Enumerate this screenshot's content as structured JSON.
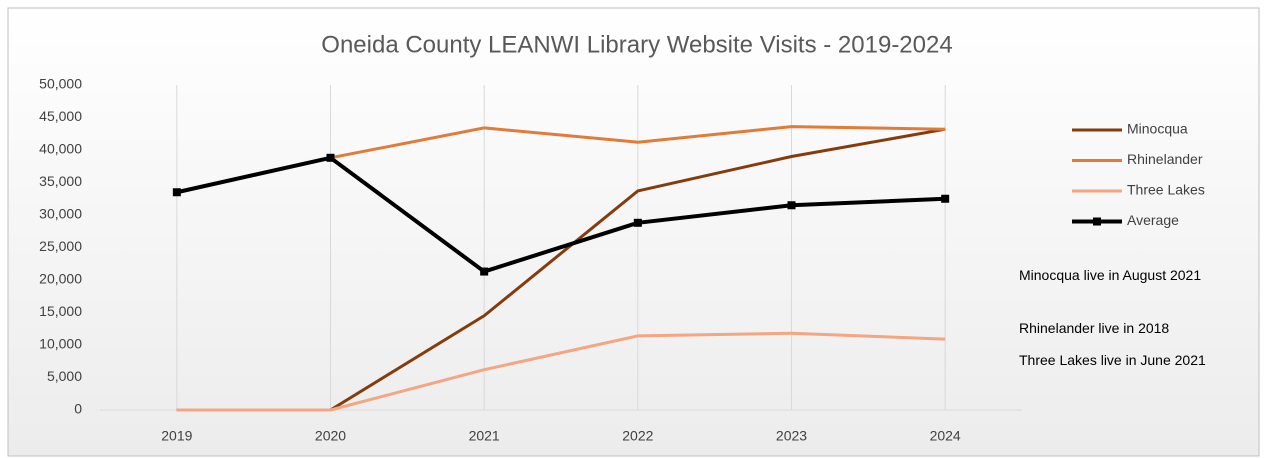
{
  "chart_data": {
    "type": "line",
    "title": "Oneida County LEANWI Library Website Visits - 2019-2024",
    "categories": [
      "2019",
      "2020",
      "2021",
      "2022",
      "2023",
      "2024"
    ],
    "series": [
      {
        "name": "Minocqua",
        "color": "#843c0c",
        "values": [
          0,
          0,
          14500,
          33700,
          39000,
          43200
        ]
      },
      {
        "name": "Rhinelander",
        "color": "#e07b39",
        "values": [
          null,
          38800,
          43400,
          41200,
          43600,
          43200
        ]
      },
      {
        "name": "Three Lakes",
        "color": "#f4a582",
        "values": [
          0,
          0,
          6200,
          11400,
          11800,
          10900
        ]
      },
      {
        "name": "Average",
        "color": "#000000",
        "marker": "square",
        "values": [
          33500,
          38800,
          21300,
          28800,
          31500,
          32500
        ]
      }
    ],
    "ylim": [
      0,
      50000
    ],
    "yticks": [
      0,
      {
        "value": 5000,
        "label": "5,000"
      },
      {
        "value": 10000,
        "label": "10,000"
      },
      {
        "value": 15000,
        "label": "15,000"
      },
      {
        "value": 20000,
        "label": "20,000"
      },
      {
        "value": 25000,
        "label": "25,000"
      },
      {
        "value": 30000,
        "label": "30,000"
      },
      {
        "value": 35000,
        "label": "35,000"
      },
      {
        "value": 40000,
        "label": "40,000"
      },
      {
        "value": 45000,
        "label": "45,000"
      },
      {
        "value": 50000,
        "label": "50,000"
      }
    ],
    "grid": "x",
    "legend": "right",
    "annotations": [
      "Minocqua live in August 2021",
      "Rhinelander live in 2018",
      "Three Lakes live in June 2021"
    ]
  }
}
